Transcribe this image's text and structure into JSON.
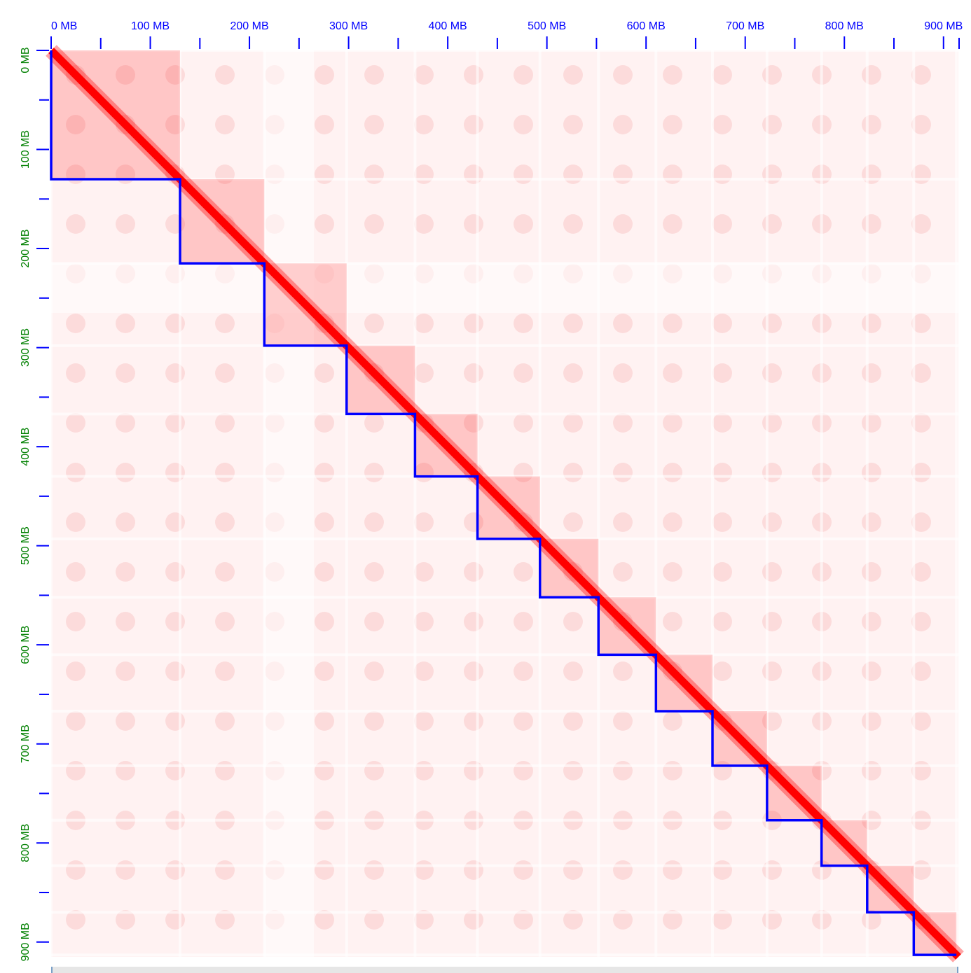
{
  "chart_data": {
    "type": "heatmap",
    "subtype": "hic-contact-map",
    "title": "",
    "x_axis": {
      "position": "top",
      "range_mb": [
        0,
        915
      ],
      "tick_labels": [
        "0 MB",
        "100 MB",
        "200 MB",
        "300 MB",
        "400 MB",
        "500 MB",
        "600 MB",
        "700 MB",
        "800 MB",
        "900 MB"
      ],
      "tick_values_mb": [
        0,
        100,
        200,
        300,
        400,
        500,
        600,
        700,
        800,
        900
      ],
      "minor_tick_values_mb": [
        50,
        150,
        250,
        350,
        450,
        550,
        650,
        750,
        850
      ],
      "color": "#0000ff"
    },
    "y_axis": {
      "position": "left",
      "range_mb": [
        0,
        915
      ],
      "tick_labels": [
        "0 MB",
        "100 MB",
        "200 MB",
        "300 MB",
        "400 MB",
        "500 MB",
        "600 MB",
        "700 MB",
        "800 MB",
        "900 MB"
      ],
      "tick_values_mb": [
        0,
        100,
        200,
        300,
        400,
        500,
        600,
        700,
        800,
        900
      ],
      "minor_tick_values_mb": [
        50,
        150,
        250,
        350,
        450,
        550,
        650,
        750,
        850
      ],
      "color": "#008000",
      "tick_color": "#0000ff"
    },
    "scaffold_boundaries_mb": [
      0,
      130,
      215,
      298,
      367,
      430,
      493,
      552,
      610,
      667,
      722,
      777,
      823,
      870,
      913
    ],
    "boundary_line_color": "#0000ff",
    "heat_color": "#ff0000",
    "background_color": "#fff0f0",
    "legend": "none",
    "grid": false
  }
}
